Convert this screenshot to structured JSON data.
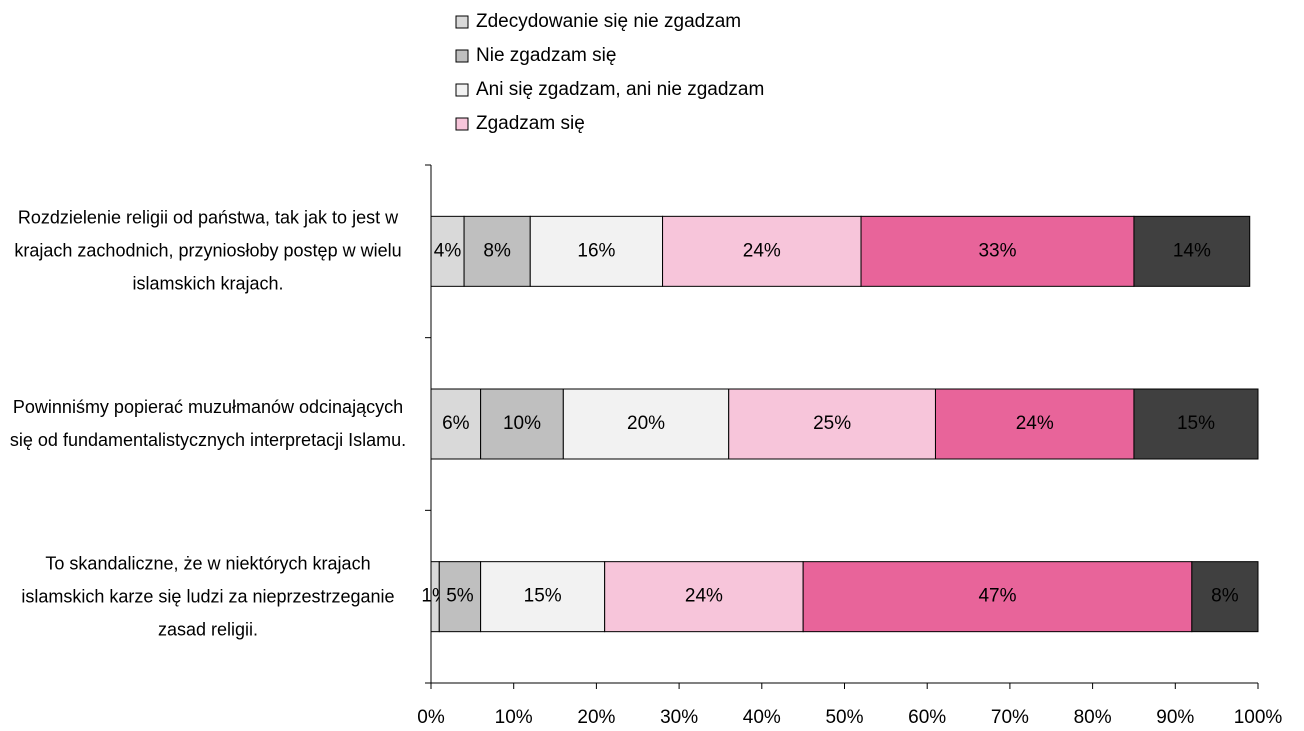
{
  "chart_data": {
    "type": "stacked-bar-horizontal",
    "categories": [
      "Rozdzielenie religii od państwa, tak jak to jest w krajach zachodnich, przyniosłoby postęp w wielu islamskich krajach.",
      "Powinniśmy popierać muzułmanów odcinających się od fundamentalistycznych interpretacji Islamu.",
      "To skandaliczne, że w niektórych krajach islamskich karze się ludzi za nieprzestrzeganie zasad religii."
    ],
    "series": [
      {
        "name": "Zdecydowanie się nie zgadzam",
        "color": "#d9d9d9",
        "values": [
          4,
          6,
          1
        ],
        "value_labels": [
          "4%",
          "6%",
          "1%"
        ]
      },
      {
        "name": "Nie zgadzam się",
        "color": "#bfbfbf",
        "values": [
          8,
          10,
          5
        ],
        "value_labels": [
          "8%",
          "10%",
          "5%"
        ]
      },
      {
        "name": "Ani się zgadzam, ani nie zgadzam",
        "color": "#f2f2f2",
        "values": [
          16,
          20,
          15
        ],
        "value_labels": [
          "16%",
          "20%",
          "15%"
        ]
      },
      {
        "name": "Zgadzam się",
        "color": "#f7c5da",
        "values": [
          24,
          25,
          24
        ],
        "value_labels": [
          "24%",
          "25%",
          "24%"
        ]
      },
      {
        "color": "#e8649a",
        "values": [
          33,
          24,
          47
        ],
        "value_labels": [
          "33%",
          "24%",
          "47%"
        ]
      },
      {
        "color": "#404040",
        "values": [
          14,
          15,
          8
        ],
        "value_labels": [
          "14%",
          "15%",
          "8%"
        ]
      }
    ],
    "xlim": [
      0,
      100
    ],
    "xticks": [
      {
        "value": 0,
        "label": "0%"
      },
      {
        "value": 10,
        "label": "10%"
      },
      {
        "value": 20,
        "label": "20%"
      },
      {
        "value": 30,
        "label": "30%"
      },
      {
        "value": 40,
        "label": "40%"
      },
      {
        "value": 50,
        "label": "50%"
      },
      {
        "value": 60,
        "label": "60%"
      },
      {
        "value": 70,
        "label": "70%"
      },
      {
        "value": 80,
        "label": "80%"
      },
      {
        "value": 90,
        "label": "90%"
      },
      {
        "value": 100,
        "label": "100%"
      }
    ],
    "legend": "top"
  }
}
